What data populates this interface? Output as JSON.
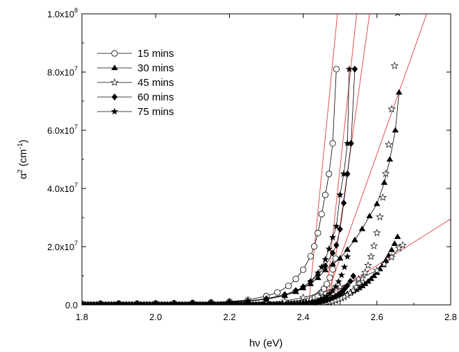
{
  "chart_data": {
    "type": "scatter",
    "title": "",
    "xlabel": "hν (eV)",
    "ylabel": {
      "base": "α",
      "sup": "2",
      "unit_open": " (cm",
      "unit_sup": "-1",
      "unit_close": ")"
    },
    "xlim": [
      1.8,
      2.8
    ],
    "ylim": [
      0,
      100000000
    ],
    "x_ticks": [
      {
        "v": 1.8,
        "label": "1.8"
      },
      {
        "v": 2.0,
        "label": "2.0"
      },
      {
        "v": 2.2,
        "label": "2.2"
      },
      {
        "v": 2.4,
        "label": "2.4"
      },
      {
        "v": 2.6,
        "label": "2.6"
      },
      {
        "v": 2.8,
        "label": "2.8"
      }
    ],
    "y_ticks": [
      {
        "v": 0,
        "mant": "0.0",
        "exp": ""
      },
      {
        "v": 20000000,
        "mant": "2.0x10",
        "exp": "7"
      },
      {
        "v": 40000000,
        "mant": "4.0x10",
        "exp": "7"
      },
      {
        "v": 60000000,
        "mant": "6.0x10",
        "exp": "7"
      },
      {
        "v": 80000000,
        "mant": "8.0x10",
        "exp": "7"
      },
      {
        "v": 100000000,
        "mant": "1.0x10",
        "exp": "8"
      }
    ],
    "grid": false,
    "legend_position": "top-left",
    "fit_line_color": "#e05050",
    "series": [
      {
        "name": "15 mins",
        "marker": "circle-open",
        "E": 2.405,
        "s": 0.03,
        "A": 1000000,
        "xend": 2.49,
        "x": [
          1.8,
          1.85,
          1.9,
          1.95,
          2.0,
          2.05,
          2.1,
          2.15,
          2.2,
          2.25,
          2.3,
          2.33,
          2.36,
          2.38,
          2.4,
          2.42,
          2.43,
          2.44,
          2.45,
          2.46,
          2.47,
          2.48,
          2.49
        ],
        "y": [
          400000,
          420000,
          440000,
          460000,
          500000,
          560000,
          660000,
          830000,
          1150000,
          1700000,
          3000000,
          4300000,
          6500000,
          8900000,
          12100000,
          16700000,
          20100000,
          24700000,
          31200000,
          37800000,
          45000000,
          55500000,
          81000000
        ],
        "fit": [
          [
            2.415,
            0
          ],
          [
            2.493,
            100000000
          ]
        ]
      },
      {
        "name": "30 mins",
        "marker": "triangle-filled",
        "E": 2.45,
        "s": 0.075,
        "A": 1500000,
        "xend": 2.66,
        "x": [
          1.8,
          1.85,
          1.9,
          1.95,
          2.0,
          2.05,
          2.1,
          2.15,
          2.2,
          2.25,
          2.3,
          2.35,
          2.38,
          2.4,
          2.42,
          2.44,
          2.46,
          2.48,
          2.5,
          2.52,
          2.54,
          2.56,
          2.58,
          2.6,
          2.62,
          2.635,
          2.65,
          2.66
        ],
        "y": [
          400000,
          420000,
          440000,
          460000,
          500000,
          560000,
          650000,
          800000,
          1050000,
          1400000,
          2000000,
          3200000,
          4500000,
          5800000,
          7200000,
          9300000,
          12000000,
          14000000,
          16000000,
          19000000,
          22300000,
          26100000,
          30500000,
          34700000,
          42000000,
          50000000,
          60000000,
          73000000
        ],
        "fit": [
          [
            2.455,
            0
          ],
          [
            2.735,
            100000000
          ]
        ]
      },
      {
        "name": "45 mins",
        "marker": "star-open",
        "E": 2.435,
        "s": 0.04,
        "A": 400000,
        "xend": 2.67,
        "x": [
          1.8,
          1.9,
          2.0,
          2.1,
          2.15,
          2.2,
          2.25,
          2.3,
          2.35,
          2.4,
          2.45,
          2.5,
          2.55,
          2.6,
          2.62,
          2.64,
          2.66,
          2.67
        ],
        "y": [
          200000,
          210000,
          220000,
          240000,
          270000,
          310000,
          400000,
          700000,
          1300000,
          2500000,
          4200000,
          6200000,
          8900000,
          11800000,
          14000000,
          16400000,
          19500000,
          20500000
        ],
        "fit": [
          [
            2.43,
            0
          ],
          [
            2.8,
            29500000
          ]
        ]
      },
      {
        "name": "60 mins",
        "marker": "diamond-filled",
        "E": 2.44,
        "s": 0.04,
        "A": 900000,
        "xend": 2.54,
        "x": [
          1.8,
          1.85,
          1.9,
          1.95,
          2.0,
          2.05,
          2.1,
          2.15,
          2.2,
          2.25,
          2.3,
          2.35,
          2.38,
          2.4,
          2.42,
          2.44,
          2.46,
          2.48,
          2.49,
          2.5,
          2.51,
          2.52,
          2.53,
          2.54
        ],
        "y": [
          400000,
          420000,
          440000,
          460000,
          490000,
          540000,
          620000,
          760000,
          1000000,
          1400000,
          2100000,
          3500000,
          4900000,
          6200000,
          8000000,
          10300000,
          13400000,
          17800000,
          20500000,
          26000000,
          35000000,
          45000000,
          55500000,
          81000000
        ],
        "fit": [
          [
            2.47,
            0
          ],
          [
            2.58,
            100000000
          ]
        ]
      },
      {
        "name": "75 mins",
        "marker": "star-filled",
        "E": 2.42,
        "s": 0.033,
        "A": 800000,
        "xend": 2.525,
        "x": [
          1.8,
          1.85,
          1.9,
          1.95,
          2.0,
          2.05,
          2.1,
          2.15,
          2.2,
          2.25,
          2.3,
          2.35,
          2.38,
          2.4,
          2.42,
          2.44,
          2.45,
          2.46,
          2.47,
          2.48,
          2.49,
          2.5,
          2.51,
          2.52,
          2.525
        ],
        "y": [
          400000,
          420000,
          440000,
          460000,
          490000,
          540000,
          610000,
          740000,
          950000,
          1300000,
          1900000,
          3200000,
          4700000,
          6000000,
          8000000,
          11000000,
          13000000,
          15600000,
          19200000,
          23200000,
          27000000,
          37800000,
          45000000,
          55500000,
          81000000
        ],
        "fit": [
          [
            2.46,
            0
          ],
          [
            2.545,
            100000000
          ]
        ]
      }
    ]
  }
}
